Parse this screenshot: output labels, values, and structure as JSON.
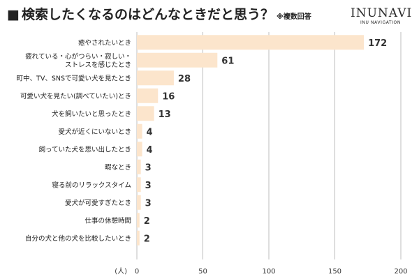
{
  "header": {
    "square": "■",
    "title": "検索したくなるのはどんなときだと思う？",
    "note": "※複数回答"
  },
  "brand": {
    "name": "INUNAVI",
    "sub": "INU NAVIGATION"
  },
  "chart_data": {
    "type": "bar",
    "orientation": "horizontal",
    "title": "検索したくなるのはどんなときだと思う？",
    "unit_label": "(人)",
    "categories": [
      [
        "癒やされたいとき"
      ],
      [
        "疲れている・心がつらい・寂しい・",
        "ストレスを感じたとき"
      ],
      [
        "町中、TV、SNSで可愛い犬を見たとき"
      ],
      [
        "可愛い犬を見たい(調べていたい)とき"
      ],
      [
        "犬を飼いたいと思ったとき"
      ],
      [
        "愛犬が近くにいないとき"
      ],
      [
        "飼っていた犬を思い出したとき"
      ],
      [
        "暇なとき"
      ],
      [
        "寝る前のリラックスタイム"
      ],
      [
        "愛犬が可愛すぎたとき"
      ],
      [
        "仕事の休憩時間"
      ],
      [
        "自分の犬と他の犬を比較したいとき"
      ]
    ],
    "values": [
      172,
      61,
      28,
      16,
      13,
      4,
      4,
      3,
      3,
      3,
      2,
      2
    ],
    "xlim": [
      0,
      200
    ],
    "xticks": [
      0,
      50,
      100,
      150,
      200
    ],
    "grid": true,
    "bar_color": "#fce5cc",
    "grid_color": "#bdbdbd"
  }
}
